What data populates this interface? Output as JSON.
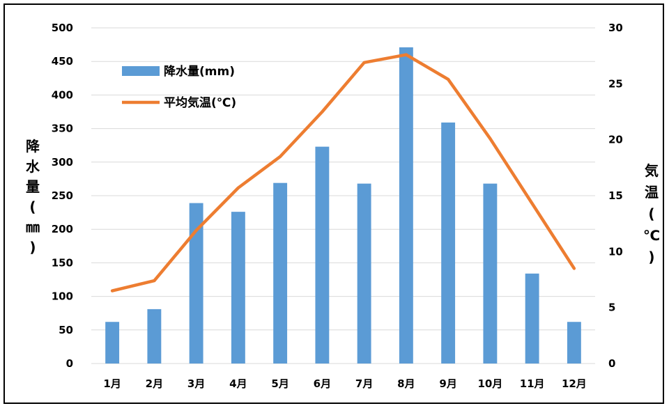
{
  "chart_data": {
    "type": "bar+line",
    "categories": [
      "1月",
      "2月",
      "3月",
      "4月",
      "5月",
      "6月",
      "7月",
      "8月",
      "9月",
      "10月",
      "11月",
      "12月"
    ],
    "series": [
      {
        "name": "降水量(mm)",
        "type": "bar",
        "axis": "left",
        "color": "#5b9bd5",
        "values": [
          62,
          81,
          239,
          226,
          269,
          323,
          268,
          471,
          359,
          268,
          134,
          62
        ]
      },
      {
        "name": "平均気温(℃)",
        "type": "line",
        "axis": "right",
        "color": "#ed7d31",
        "values": [
          6.5,
          7.4,
          11.9,
          15.7,
          18.5,
          22.5,
          26.9,
          27.6,
          25.4,
          20.1,
          14.3,
          8.5
        ]
      }
    ],
    "y_left": {
      "label": "降水量(㎜)",
      "ylim": [
        0,
        500
      ],
      "ticks": [
        "0",
        "50",
        "100",
        "150",
        "200",
        "250",
        "300",
        "350",
        "400",
        "450",
        "500"
      ]
    },
    "y_right": {
      "label": "気温(℃)",
      "ylim": [
        0,
        30
      ],
      "ticks": [
        "0",
        "5",
        "10",
        "15",
        "20",
        "25",
        "30"
      ]
    },
    "grid": true,
    "legend_position": "top-left",
    "gridline_color": "#d9d9d9"
  }
}
